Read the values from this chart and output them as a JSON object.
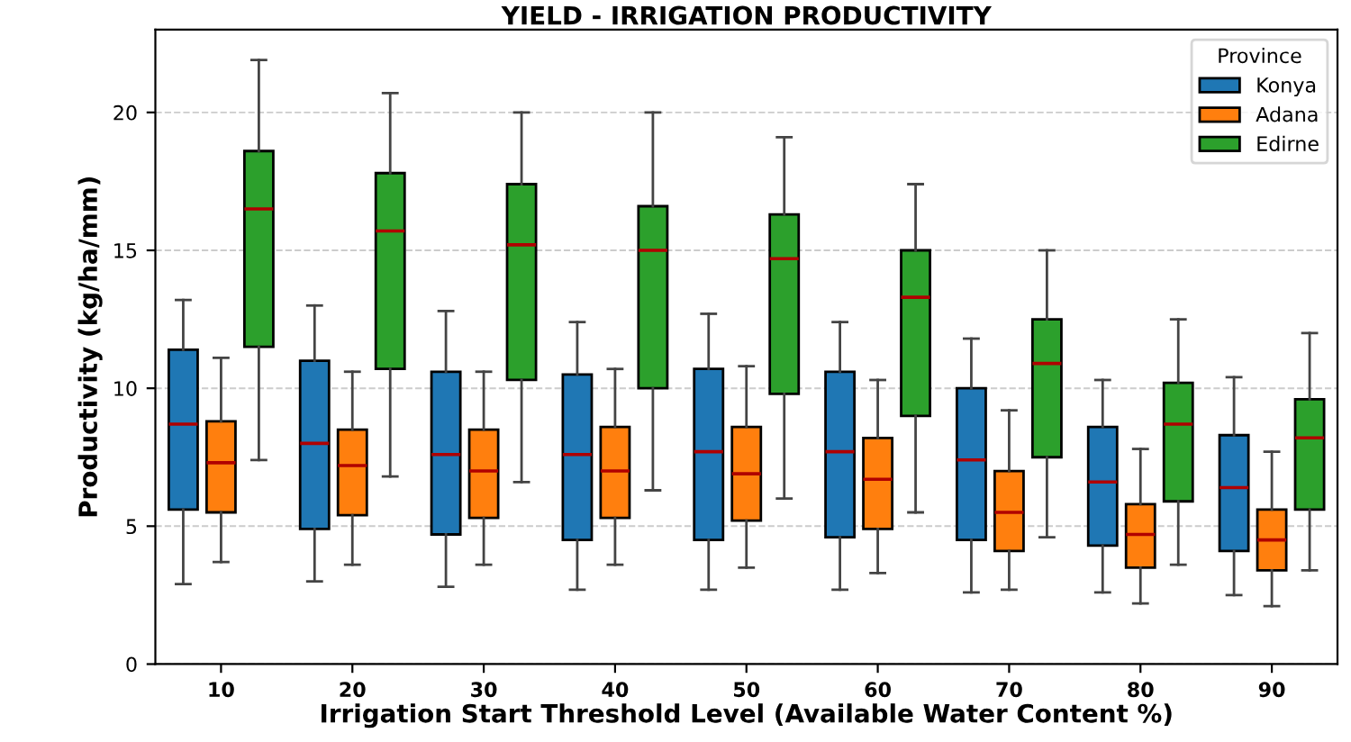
{
  "chart_data": {
    "type": "box",
    "title": "YIELD - IRRIGATION PRODUCTIVITY",
    "xlabel": "Irrigation Start Threshold Level (Available Water Content %)",
    "ylabel": "Productivity (kg/ha/mm)",
    "legend_title": "Province",
    "legend": "top right",
    "grid": "y",
    "categories": [
      "10",
      "20",
      "30",
      "40",
      "50",
      "60",
      "70",
      "80",
      "90"
    ],
    "ylim": [
      0,
      23
    ],
    "yticks": [
      0,
      5,
      10,
      15,
      20
    ],
    "series": [
      {
        "name": "Konya",
        "color": "#1f77b4",
        "boxes": [
          {
            "low": 2.9,
            "q1": 5.6,
            "median": 8.7,
            "q3": 11.4,
            "high": 13.2
          },
          {
            "low": 3.0,
            "q1": 4.9,
            "median": 8.0,
            "q3": 11.0,
            "high": 13.0
          },
          {
            "low": 2.8,
            "q1": 4.7,
            "median": 7.6,
            "q3": 10.6,
            "high": 12.8
          },
          {
            "low": 2.7,
            "q1": 4.5,
            "median": 7.6,
            "q3": 10.5,
            "high": 12.4
          },
          {
            "low": 2.7,
            "q1": 4.5,
            "median": 7.7,
            "q3": 10.7,
            "high": 12.7
          },
          {
            "low": 2.7,
            "q1": 4.6,
            "median": 7.7,
            "q3": 10.6,
            "high": 12.4
          },
          {
            "low": 2.6,
            "q1": 4.5,
            "median": 7.4,
            "q3": 10.0,
            "high": 11.8
          },
          {
            "low": 2.6,
            "q1": 4.3,
            "median": 6.6,
            "q3": 8.6,
            "high": 10.3
          },
          {
            "low": 2.5,
            "q1": 4.1,
            "median": 6.4,
            "q3": 8.3,
            "high": 10.4
          }
        ]
      },
      {
        "name": "Adana",
        "color": "#ff7f0e",
        "boxes": [
          {
            "low": 3.7,
            "q1": 5.5,
            "median": 7.3,
            "q3": 8.8,
            "high": 11.1
          },
          {
            "low": 3.6,
            "q1": 5.4,
            "median": 7.2,
            "q3": 8.5,
            "high": 10.6
          },
          {
            "low": 3.6,
            "q1": 5.3,
            "median": 7.0,
            "q3": 8.5,
            "high": 10.6
          },
          {
            "low": 3.6,
            "q1": 5.3,
            "median": 7.0,
            "q3": 8.6,
            "high": 10.7
          },
          {
            "low": 3.5,
            "q1": 5.2,
            "median": 6.9,
            "q3": 8.6,
            "high": 10.8
          },
          {
            "low": 3.3,
            "q1": 4.9,
            "median": 6.7,
            "q3": 8.2,
            "high": 10.3
          },
          {
            "low": 2.7,
            "q1": 4.1,
            "median": 5.5,
            "q3": 7.0,
            "high": 9.2
          },
          {
            "low": 2.2,
            "q1": 3.5,
            "median": 4.7,
            "q3": 5.8,
            "high": 7.8
          },
          {
            "low": 2.1,
            "q1": 3.4,
            "median": 4.5,
            "q3": 5.6,
            "high": 7.7
          }
        ]
      },
      {
        "name": "Edirne",
        "color": "#2ca02c",
        "boxes": [
          {
            "low": 7.4,
            "q1": 11.5,
            "median": 16.5,
            "q3": 18.6,
            "high": 21.9
          },
          {
            "low": 6.8,
            "q1": 10.7,
            "median": 15.7,
            "q3": 17.8,
            "high": 20.7
          },
          {
            "low": 6.6,
            "q1": 10.3,
            "median": 15.2,
            "q3": 17.4,
            "high": 20.0
          },
          {
            "low": 6.3,
            "q1": 10.0,
            "median": 15.0,
            "q3": 16.6,
            "high": 20.0
          },
          {
            "low": 6.0,
            "q1": 9.8,
            "median": 14.7,
            "q3": 16.3,
            "high": 19.1
          },
          {
            "low": 5.5,
            "q1": 9.0,
            "median": 13.3,
            "q3": 15.0,
            "high": 17.4
          },
          {
            "low": 4.6,
            "q1": 7.5,
            "median": 10.9,
            "q3": 12.5,
            "high": 15.0
          },
          {
            "low": 3.6,
            "q1": 5.9,
            "median": 8.7,
            "q3": 10.2,
            "high": 12.5
          },
          {
            "low": 3.4,
            "q1": 5.6,
            "median": 8.2,
            "q3": 9.6,
            "high": 12.0
          }
        ]
      }
    ]
  }
}
